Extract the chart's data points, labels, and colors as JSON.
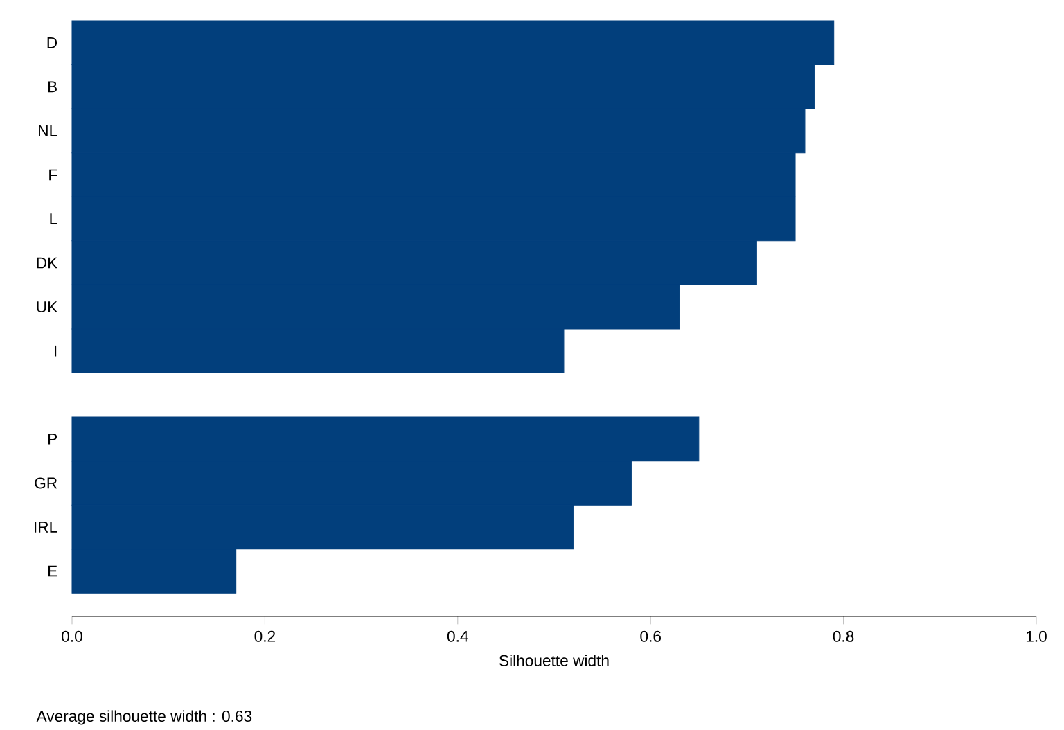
{
  "chart_data": {
    "type": "bar",
    "orientation": "horizontal",
    "color": "#023f7c",
    "categories": [
      "D",
      "B",
      "NL",
      "F",
      "L",
      "DK",
      "UK",
      "I",
      null,
      "P",
      "GR",
      "IRL",
      "E"
    ],
    "values": [
      0.79,
      0.77,
      0.76,
      0.75,
      0.75,
      0.71,
      0.63,
      0.51,
      null,
      0.65,
      0.58,
      0.52,
      0.17
    ],
    "xlim": [
      0,
      1
    ],
    "xticks": [
      {
        "value": 0,
        "label": "0.0"
      },
      {
        "value": 0.2,
        "label": "0.2"
      },
      {
        "value": 0.4,
        "label": "0.4"
      },
      {
        "value": 0.6,
        "label": "0.6"
      },
      {
        "value": 0.8,
        "label": "0.8"
      },
      {
        "value": 1,
        "label": "1.0"
      }
    ],
    "xlabel": "Silhouette width",
    "annotations": [
      "Average silhouette width :  0.63"
    ]
  }
}
